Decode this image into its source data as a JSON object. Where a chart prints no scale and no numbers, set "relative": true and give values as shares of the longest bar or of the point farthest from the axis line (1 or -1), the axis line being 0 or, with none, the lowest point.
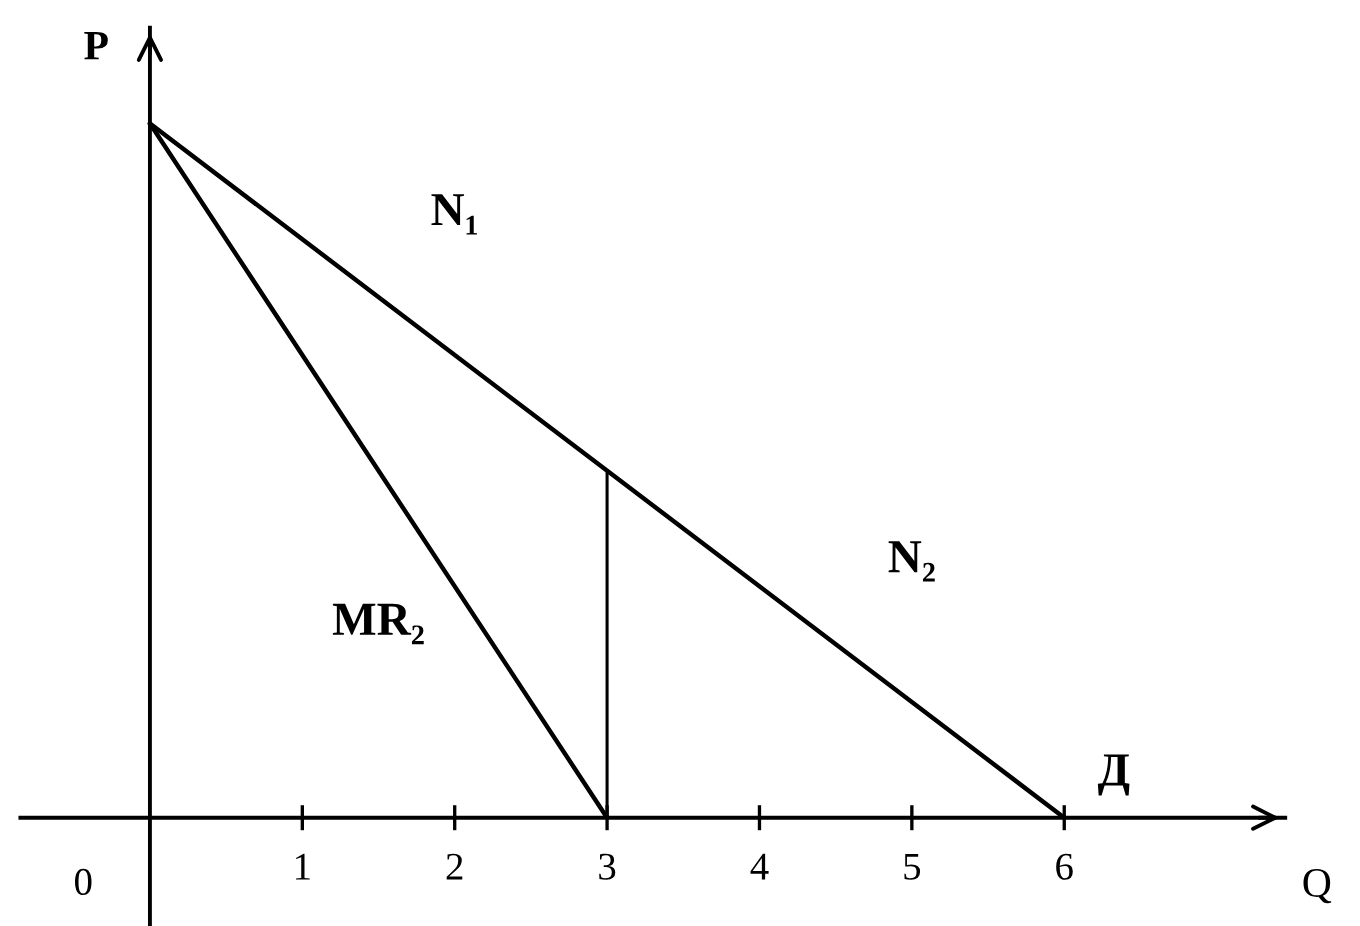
{
  "chart_data": {
    "type": "line",
    "relative": true,
    "xlabel": "Q",
    "ylabel": "P",
    "xlim": [
      -0.85,
      7.45
    ],
    "xticks": [
      1,
      2,
      3,
      4,
      5,
      6
    ],
    "series": [
      {
        "name": "Д",
        "color": "#000000",
        "x": [
          0,
          6
        ],
        "values": [
          1,
          0
        ]
      },
      {
        "name": "MR₂",
        "color": "#000000",
        "x": [
          0,
          3
        ],
        "values": [
          1,
          0
        ]
      },
      {
        "color": "#000000",
        "x": [
          3,
          3
        ],
        "values": [
          0,
          0.5
        ]
      }
    ],
    "annotations": [
      {
        "text": "N₁",
        "x": 2,
        "y": 0.67
      },
      {
        "text": "N₂",
        "x": 5,
        "y": 0.17
      },
      "0"
    ]
  }
}
